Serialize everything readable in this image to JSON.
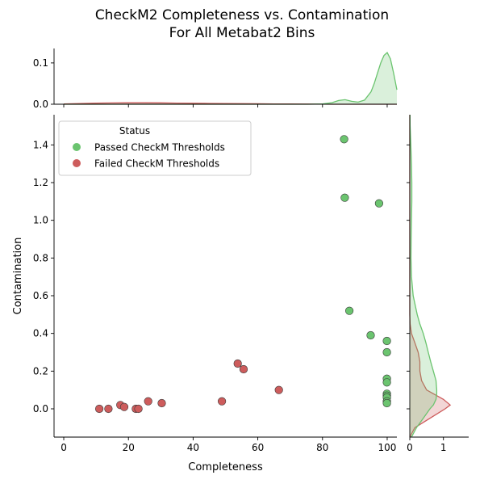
{
  "title_lines": [
    "CheckM2 Completeness vs. Contamination",
    "For All Metabat2 Bins"
  ],
  "chart_data": {
    "type": "scatter",
    "title": "CheckM2 Completeness vs. Contamination For All Metabat2 Bins",
    "xlabel": "Completeness",
    "ylabel": "Contamination",
    "xlim": [
      -3,
      103
    ],
    "ylim": [
      -0.15,
      1.56
    ],
    "x_ticks": [
      0,
      20,
      40,
      60,
      80,
      100
    ],
    "y_ticks": [
      0.0,
      0.2,
      0.4,
      0.6,
      0.8,
      1.0,
      1.2,
      1.4
    ],
    "grid": false,
    "legend": {
      "title": "Status",
      "placement": "top-left"
    },
    "series": [
      {
        "name": "Passed CheckM Thresholds",
        "color": "#6bc46f",
        "points": [
          {
            "x": 86.7,
            "y": 1.43
          },
          {
            "x": 86.9,
            "y": 1.12
          },
          {
            "x": 97.5,
            "y": 1.09
          },
          {
            "x": 88.3,
            "y": 0.52
          },
          {
            "x": 94.9,
            "y": 0.39
          },
          {
            "x": 99.9,
            "y": 0.36
          },
          {
            "x": 99.9,
            "y": 0.3
          },
          {
            "x": 99.9,
            "y": 0.16
          },
          {
            "x": 99.9,
            "y": 0.14
          },
          {
            "x": 99.9,
            "y": 0.08
          },
          {
            "x": 99.9,
            "y": 0.07
          },
          {
            "x": 99.9,
            "y": 0.06
          },
          {
            "x": 99.9,
            "y": 0.04
          },
          {
            "x": 99.9,
            "y": 0.03
          }
        ]
      },
      {
        "name": "Failed CheckM Thresholds",
        "color": "#cd5c5c",
        "points": [
          {
            "x": 11.0,
            "y": 0.0
          },
          {
            "x": 13.8,
            "y": 0.0
          },
          {
            "x": 17.5,
            "y": 0.02
          },
          {
            "x": 18.7,
            "y": 0.01
          },
          {
            "x": 22.3,
            "y": 0.0
          },
          {
            "x": 23.1,
            "y": 0.0
          },
          {
            "x": 26.1,
            "y": 0.04
          },
          {
            "x": 30.3,
            "y": 0.03
          },
          {
            "x": 48.9,
            "y": 0.04
          },
          {
            "x": 53.8,
            "y": 0.24
          },
          {
            "x": 55.6,
            "y": 0.21
          },
          {
            "x": 66.5,
            "y": 0.1
          }
        ]
      }
    ],
    "marginal_x": {
      "ylim": [
        0,
        0.135
      ],
      "y_ticks": [
        0.0,
        0.1
      ],
      "x_grid": [
        0,
        5,
        10,
        15,
        20,
        25,
        30,
        35,
        40,
        45,
        50,
        55,
        60,
        65,
        70,
        75,
        80,
        83,
        85,
        87,
        89,
        91,
        93,
        95,
        96,
        97,
        98,
        99,
        100,
        101,
        102,
        103
      ],
      "passed_density": [
        0,
        0,
        0,
        0,
        0,
        0,
        0,
        0,
        0,
        0,
        0,
        0,
        0,
        0,
        0,
        0,
        0.0005,
        0.004,
        0.009,
        0.011,
        0.007,
        0.005,
        0.01,
        0.03,
        0.05,
        0.075,
        0.1,
        0.118,
        0.125,
        0.11,
        0.075,
        0.035
      ],
      "failed_density": [
        0.0005,
        0.0015,
        0.0025,
        0.0032,
        0.0036,
        0.0036,
        0.0033,
        0.0028,
        0.0024,
        0.002,
        0.0017,
        0.0014,
        0.0011,
        0.0008,
        0.0005,
        0.0003,
        0.0001,
        0,
        0,
        0,
        0,
        0,
        0,
        0,
        0,
        0,
        0,
        0,
        0,
        0,
        0,
        0
      ]
    },
    "marginal_y": {
      "xlim": [
        0,
        1.75
      ],
      "x_ticks": [
        0,
        1
      ],
      "y_grid": [
        -0.15,
        -0.1,
        -0.05,
        0.0,
        0.02,
        0.05,
        0.08,
        0.1,
        0.15,
        0.2,
        0.25,
        0.3,
        0.35,
        0.4,
        0.45,
        0.5,
        0.6,
        0.7,
        0.8,
        0.9,
        1.0,
        1.1,
        1.2,
        1.3,
        1.4,
        1.5,
        1.56
      ],
      "passed_density": [
        0.05,
        0.2,
        0.4,
        0.6,
        0.7,
        0.78,
        0.8,
        0.8,
        0.78,
        0.7,
        0.62,
        0.55,
        0.48,
        0.4,
        0.3,
        0.22,
        0.1,
        0.05,
        0.035,
        0.04,
        0.05,
        0.06,
        0.06,
        0.05,
        0.03,
        0.01,
        0.005
      ],
      "failed_density": [
        0,
        0.15,
        0.6,
        1.05,
        1.2,
        1.0,
        0.7,
        0.5,
        0.35,
        0.3,
        0.3,
        0.25,
        0.15,
        0.05,
        0.01,
        0,
        0,
        0,
        0,
        0,
        0,
        0,
        0,
        0,
        0,
        0,
        0
      ]
    }
  }
}
